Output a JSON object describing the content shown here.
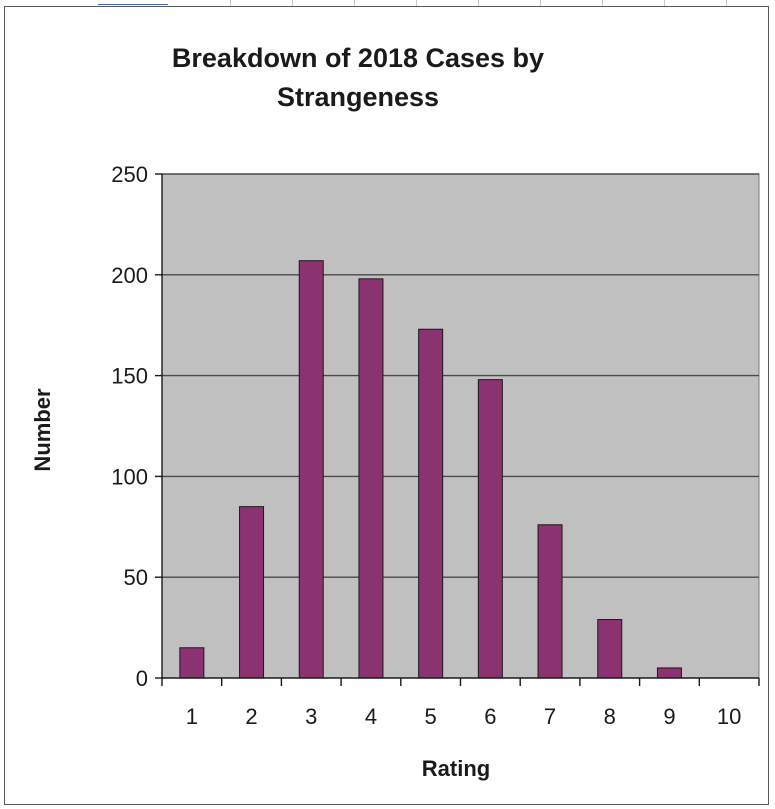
{
  "chart_data": {
    "type": "bar",
    "title": "Breakdown of 2018 Cases by Strangeness",
    "title_lines": [
      "Breakdown of 2018 Cases by",
      "Strangeness"
    ],
    "xlabel": "Rating",
    "ylabel": "Number",
    "categories": [
      "1",
      "2",
      "3",
      "4",
      "5",
      "6",
      "7",
      "8",
      "9",
      "10"
    ],
    "values": [
      15,
      85,
      207,
      198,
      173,
      148,
      76,
      29,
      5,
      0
    ],
    "ylim": [
      0,
      250
    ],
    "yticks": [
      "0",
      "50",
      "100",
      "150",
      "200",
      "250"
    ],
    "ytick_values": [
      0,
      50,
      100,
      150,
      200,
      250
    ],
    "grid": true,
    "legend": "none",
    "colors": {
      "bar_fill": "#8b3270",
      "bar_stroke": "#1a1a1a",
      "plot_bg": "#c0c0c0",
      "gridline": "#4a4a4a"
    }
  }
}
